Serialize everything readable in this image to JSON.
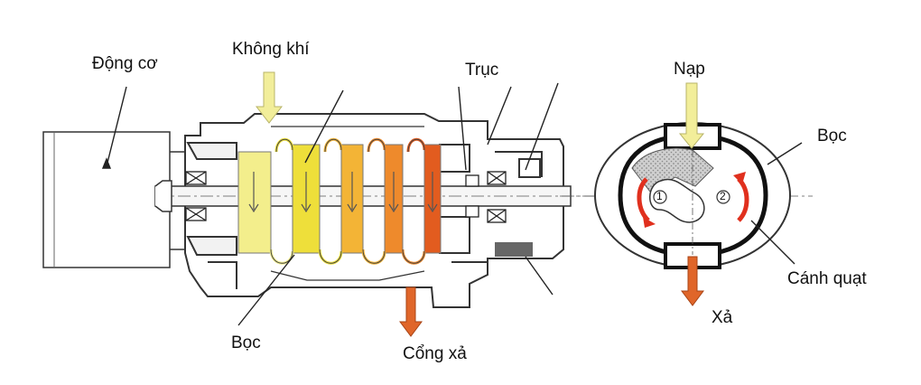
{
  "labels": {
    "motor": "Động cơ",
    "air": "Không khí",
    "shaft": "Trục",
    "intake": "Nạp",
    "housing_right": "Bọc",
    "impeller": "Cánh quạt",
    "exhaust": "Xả",
    "housing_bottom": "Bọc",
    "exhaust_port": "Cổng xả"
  },
  "rotor_numbers": [
    "1",
    "2"
  ],
  "colors": {
    "air_arrow": "#f2ee9a",
    "exhaust_arrow": "#e0662a",
    "rotation_arrow": "#e0301e",
    "stage_colors": [
      "#f3ee8c",
      "#eedf3a",
      "#f3b436",
      "#ee8a2c",
      "#e25c1f"
    ]
  }
}
